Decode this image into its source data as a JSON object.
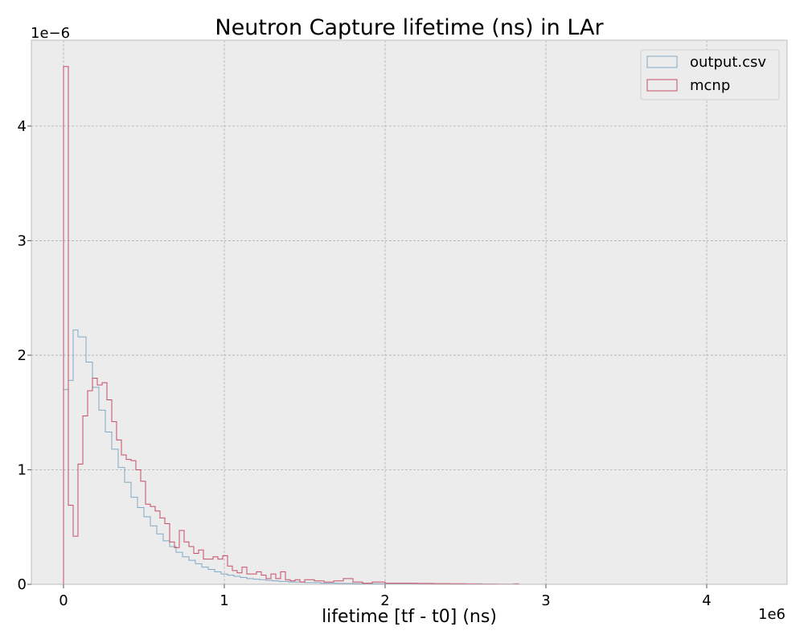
{
  "chart_data": {
    "type": "histogram",
    "title": "Neutron Capture lifetime (ns) in LAr",
    "xlabel": "lifetime [tf - t0] (ns)",
    "ylabel": "",
    "x_offset_label": "1e6",
    "y_offset_label": "1e−6",
    "xlim": [
      -200000,
      4500000
    ],
    "ylim": [
      0,
      4.75e-06
    ],
    "x_ticks": [
      0,
      1000000,
      2000000,
      3000000,
      4000000
    ],
    "x_tick_labels": [
      "0",
      "1",
      "2",
      "3",
      "4"
    ],
    "y_ticks": [
      0,
      1e-06,
      2e-06,
      3e-06,
      4e-06
    ],
    "y_tick_labels": [
      "0",
      "1",
      "2",
      "3",
      "4"
    ],
    "grid": true,
    "legend_position": "top-right",
    "series": [
      {
        "name": "output.csv",
        "color": "#7fa9c6",
        "bin_edges": [
          0,
          30000,
          60000,
          90000,
          140000,
          180000,
          220000,
          260000,
          300000,
          340000,
          380000,
          420000,
          460000,
          500000,
          540000,
          580000,
          620000,
          660000,
          700000,
          740000,
          780000,
          820000,
          860000,
          900000,
          940000,
          980000,
          1020000,
          1060000,
          1100000,
          1140000,
          1180000,
          1220000,
          1260000,
          1300000,
          1340000,
          1400000,
          1500000,
          1600000,
          1700000,
          1800000,
          1900000,
          2000000,
          2200000,
          2400000,
          2600000,
          2700000
        ],
        "values": [
          1.7e-06,
          1.78e-06,
          2.22e-06,
          2.16e-06,
          1.94e-06,
          1.72e-06,
          1.52e-06,
          1.33e-06,
          1.18e-06,
          1.02e-06,
          8.9e-07,
          7.6e-07,
          6.7e-07,
          5.9e-07,
          5.1e-07,
          4.4e-07,
          3.8e-07,
          3.3e-07,
          2.8e-07,
          2.4e-07,
          2.1e-07,
          1.8e-07,
          1.5e-07,
          1.3e-07,
          1.1e-07,
          9e-08,
          8e-08,
          7e-08,
          6e-08,
          5e-08,
          4.5e-08,
          4e-08,
          3.5e-08,
          3e-08,
          2.5e-08,
          2e-08,
          1.5e-08,
          1e-08,
          8e-09,
          6e-09,
          5e-09,
          3e-09,
          2e-09,
          2e-09,
          1e-09
        ]
      },
      {
        "name": "mcnp",
        "color": "#c44e65",
        "bin_edges": [
          0,
          30000,
          60000,
          90000,
          120000,
          150000,
          180000,
          210000,
          240000,
          270000,
          300000,
          330000,
          360000,
          390000,
          420000,
          450000,
          480000,
          510000,
          540000,
          570000,
          600000,
          630000,
          660000,
          690000,
          720000,
          750000,
          780000,
          810000,
          840000,
          870000,
          900000,
          930000,
          960000,
          990000,
          1020000,
          1050000,
          1080000,
          1110000,
          1140000,
          1170000,
          1200000,
          1230000,
          1260000,
          1290000,
          1320000,
          1350000,
          1380000,
          1410000,
          1440000,
          1470000,
          1500000,
          1560000,
          1620000,
          1680000,
          1740000,
          1800000,
          1860000,
          1920000,
          2000000,
          2100000,
          2200000,
          2300000,
          2400000,
          2500000,
          2600000,
          2700000,
          2800000,
          2830000
        ],
        "values": [
          4.52e-06,
          6.9e-07,
          4.2e-07,
          1.05e-06,
          1.47e-06,
          1.69e-06,
          1.8e-06,
          1.74e-06,
          1.76e-06,
          1.61e-06,
          1.42e-06,
          1.26e-06,
          1.13e-06,
          1.09e-06,
          1.08e-06,
          1e-06,
          9e-07,
          7e-07,
          6.8e-07,
          6.4e-07,
          5.8e-07,
          5.3e-07,
          3.7e-07,
          3.2e-07,
          4.7e-07,
          3.7e-07,
          3.3e-07,
          2.7e-07,
          3e-07,
          2.2e-07,
          2.2e-07,
          2.4e-07,
          2.2e-07,
          2.5e-07,
          1.6e-07,
          1.2e-07,
          1e-07,
          1.5e-07,
          9e-08,
          9e-08,
          1.1e-07,
          8e-08,
          5e-08,
          9e-08,
          5e-08,
          1.1e-07,
          4e-08,
          3e-08,
          4e-08,
          2e-08,
          4e-08,
          3e-08,
          2e-08,
          3e-08,
          5e-08,
          2e-08,
          1e-08,
          2e-08,
          1e-08,
          1e-08,
          8e-09,
          6e-09,
          5e-09,
          4e-09,
          3e-09,
          2e-09,
          4e-09
        ]
      }
    ]
  }
}
